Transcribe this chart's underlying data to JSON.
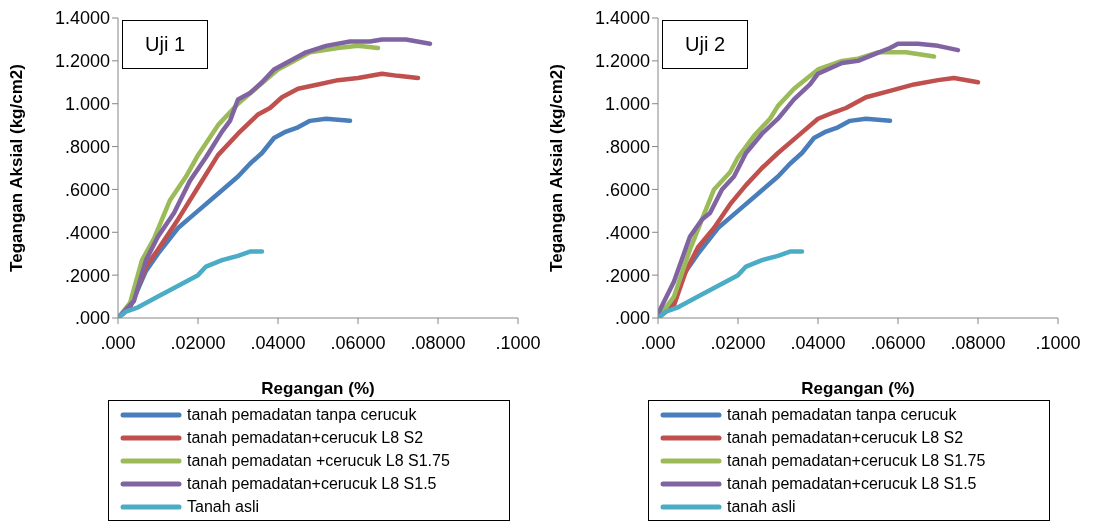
{
  "chart_data": [
    {
      "type": "line",
      "xlabel": "Regangan (%)",
      "ylabel": "Tegangan Aksial (kg/cm2)",
      "annotations": [
        "Uji 1"
      ],
      "legend": "bottom",
      "marker": "none",
      "line_style": "solid",
      "grid": false,
      "xlim": [
        0,
        0.1
      ],
      "xticks": [
        {
          "value": 0,
          "label": ".000"
        },
        {
          "value": 0.02,
          "label": ".02000"
        },
        {
          "value": 0.04,
          "label": ".04000"
        },
        {
          "value": 0.06,
          "label": ".06000"
        },
        {
          "value": 0.08,
          "label": ".08000"
        },
        {
          "value": 0.1,
          "label": ".1000"
        }
      ],
      "ylim": [
        0,
        1.4
      ],
      "yticks": [
        {
          "value": 0,
          "label": ".000"
        },
        {
          "value": 0.2,
          "label": ".2000"
        },
        {
          "value": 0.4,
          "label": ".4000"
        },
        {
          "value": 0.6,
          "label": ".6000"
        },
        {
          "value": 0.8,
          "label": ".8000"
        },
        {
          "value": 1,
          "label": "1.000"
        },
        {
          "value": 1.2,
          "label": "1.2000"
        },
        {
          "value": 1.4,
          "label": "1.4000"
        }
      ],
      "series": [
        {
          "name": "tanah pemadatan tanpa cerucuk",
          "color": "#4a7ebb",
          "x": [
            0,
            0.003,
            0.007,
            0.01,
            0.015,
            0.02,
            0.025,
            0.03,
            0.033,
            0.036,
            0.039,
            0.042,
            0.045,
            0.048,
            0.052,
            0.058
          ],
          "values": [
            0,
            0.05,
            0.22,
            0.3,
            0.42,
            0.5,
            0.58,
            0.66,
            0.72,
            0.77,
            0.84,
            0.87,
            0.89,
            0.92,
            0.93,
            0.92
          ]
        },
        {
          "name": "tanah pemadatan+cerucuk L8 S2",
          "color": "#c0504d",
          "x": [
            0,
            0.003,
            0.007,
            0.01,
            0.015,
            0.02,
            0.025,
            0.03,
            0.035,
            0.038,
            0.041,
            0.045,
            0.05,
            0.055,
            0.06,
            0.066,
            0.07,
            0.075
          ],
          "values": [
            0,
            0.05,
            0.24,
            0.32,
            0.46,
            0.61,
            0.76,
            0.86,
            0.95,
            0.98,
            1.03,
            1.07,
            1.09,
            1.11,
            1.12,
            1.14,
            1.13,
            1.12
          ]
        },
        {
          "name": "tanah pemadatan +cerucuk L8 S1.75",
          "color": "#9bbb59",
          "x": [
            0,
            0.003,
            0.006,
            0.009,
            0.013,
            0.017,
            0.02,
            0.025,
            0.03,
            0.035,
            0.04,
            0.045,
            0.048,
            0.055,
            0.06,
            0.065
          ],
          "values": [
            0,
            0.07,
            0.27,
            0.37,
            0.55,
            0.66,
            0.76,
            0.9,
            1.0,
            1.08,
            1.16,
            1.21,
            1.24,
            1.26,
            1.27,
            1.26
          ]
        },
        {
          "name": "tanah pemadatan+cerucuk L8 S1.5",
          "color": "#8064a2",
          "x": [
            0,
            0.004,
            0.007,
            0.01,
            0.014,
            0.018,
            0.022,
            0.026,
            0.028,
            0.03,
            0.033,
            0.036,
            0.039,
            0.044,
            0.047,
            0.052,
            0.058,
            0.063,
            0.066,
            0.072,
            0.078
          ],
          "values": [
            0,
            0.08,
            0.27,
            0.38,
            0.49,
            0.64,
            0.75,
            0.87,
            0.92,
            1.02,
            1.05,
            1.1,
            1.16,
            1.21,
            1.24,
            1.27,
            1.29,
            1.29,
            1.3,
            1.3,
            1.28
          ]
        },
        {
          "name": "Tanah asli",
          "color": "#4bacc6",
          "x": [
            0,
            0.002,
            0.005,
            0.01,
            0.014,
            0.018,
            0.02,
            0.022,
            0.026,
            0.03,
            0.033,
            0.036
          ],
          "values": [
            0,
            0.03,
            0.05,
            0.1,
            0.14,
            0.18,
            0.2,
            0.24,
            0.27,
            0.29,
            0.31,
            0.31
          ]
        }
      ]
    },
    {
      "type": "line",
      "xlabel": "Regangan (%)",
      "ylabel": "Tegangan Aksial (kg/cm2)",
      "annotations": [
        "Uji 2"
      ],
      "legend": "bottom",
      "marker": "none",
      "line_style": "solid",
      "grid": false,
      "xlim": [
        0,
        0.1
      ],
      "xticks": [
        {
          "value": 0,
          "label": ".000"
        },
        {
          "value": 0.02,
          "label": ".02000"
        },
        {
          "value": 0.04,
          "label": ".04000"
        },
        {
          "value": 0.06,
          "label": ".06000"
        },
        {
          "value": 0.08,
          "label": ".08000"
        },
        {
          "value": 0.1,
          "label": ".1000"
        }
      ],
      "ylim": [
        0,
        1.4
      ],
      "yticks": [
        {
          "value": 0,
          "label": ".000"
        },
        {
          "value": 0.2,
          "label": ".2000"
        },
        {
          "value": 0.4,
          "label": ".4000"
        },
        {
          "value": 0.6,
          "label": ".6000"
        },
        {
          "value": 0.8,
          "label": ".8000"
        },
        {
          "value": 1,
          "label": "1.000"
        },
        {
          "value": 1.2,
          "label": "1.2000"
        },
        {
          "value": 1.4,
          "label": "1.4000"
        }
      ],
      "series": [
        {
          "name": "tanah pemadatan tanpa cerucuk",
          "color": "#4a7ebb",
          "x": [
            0,
            0.003,
            0.007,
            0.01,
            0.015,
            0.02,
            0.025,
            0.03,
            0.033,
            0.036,
            0.039,
            0.042,
            0.045,
            0.048,
            0.052,
            0.058
          ],
          "values": [
            0,
            0.05,
            0.22,
            0.3,
            0.42,
            0.5,
            0.58,
            0.66,
            0.72,
            0.77,
            0.84,
            0.87,
            0.89,
            0.92,
            0.93,
            0.92
          ]
        },
        {
          "name": "tanah pemadatan+cerucuk L8 S2",
          "color": "#c0504d",
          "x": [
            0,
            0.004,
            0.007,
            0.01,
            0.014,
            0.018,
            0.022,
            0.026,
            0.03,
            0.035,
            0.04,
            0.044,
            0.047,
            0.052,
            0.058,
            0.064,
            0.07,
            0.074,
            0.08
          ],
          "values": [
            0,
            0.06,
            0.22,
            0.33,
            0.42,
            0.53,
            0.62,
            0.7,
            0.77,
            0.85,
            0.93,
            0.96,
            0.98,
            1.03,
            1.06,
            1.09,
            1.11,
            1.12,
            1.1
          ]
        },
        {
          "name": "tanah pemadatan+cerucuk L8 S1.75",
          "color": "#9bbb59",
          "x": [
            0,
            0.004,
            0.008,
            0.011,
            0.014,
            0.018,
            0.02,
            0.024,
            0.028,
            0.03,
            0.034,
            0.04,
            0.046,
            0.05,
            0.055,
            0.062,
            0.069
          ],
          "values": [
            0,
            0.1,
            0.32,
            0.46,
            0.6,
            0.68,
            0.75,
            0.85,
            0.93,
            0.99,
            1.07,
            1.16,
            1.2,
            1.21,
            1.24,
            1.24,
            1.22
          ]
        },
        {
          "name": "tanah pemadatan+cerucuk L8 S1.5",
          "color": "#8064a2",
          "x": [
            0,
            0.004,
            0.008,
            0.011,
            0.013,
            0.016,
            0.019,
            0.022,
            0.026,
            0.03,
            0.034,
            0.038,
            0.04,
            0.046,
            0.05,
            0.054,
            0.058,
            0.06,
            0.065,
            0.07,
            0.075
          ],
          "values": [
            0.02,
            0.17,
            0.38,
            0.46,
            0.49,
            0.6,
            0.66,
            0.77,
            0.86,
            0.93,
            1.02,
            1.09,
            1.14,
            1.19,
            1.2,
            1.23,
            1.26,
            1.28,
            1.28,
            1.27,
            1.25
          ]
        },
        {
          "name": "tanah asli",
          "color": "#4bacc6",
          "x": [
            0,
            0.002,
            0.005,
            0.01,
            0.014,
            0.018,
            0.02,
            0.022,
            0.026,
            0.03,
            0.033,
            0.036
          ],
          "values": [
            0,
            0.03,
            0.05,
            0.1,
            0.14,
            0.18,
            0.2,
            0.24,
            0.27,
            0.29,
            0.31,
            0.31
          ]
        }
      ]
    }
  ]
}
